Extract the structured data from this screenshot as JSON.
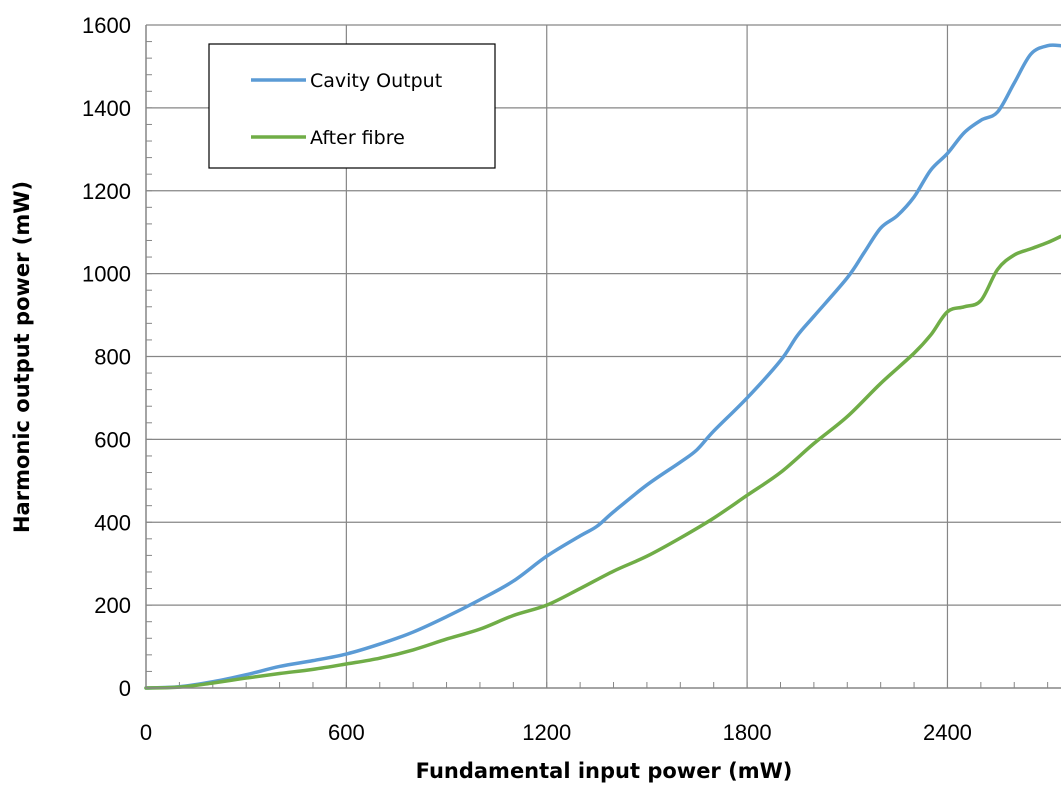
{
  "chart_data": {
    "type": "line",
    "title": "",
    "xlabel": "Fundamental input power (mW)",
    "ylabel": "Harmonic output power (mW)",
    "xlim": [
      0,
      2740
    ],
    "ylim": [
      0,
      1600
    ],
    "x_ticks": [
      0,
      600,
      1200,
      1800,
      2400
    ],
    "y_ticks": [
      0,
      200,
      400,
      600,
      800,
      1000,
      1200,
      1400,
      1600
    ],
    "grid": true,
    "legend_position": "top-left",
    "series": [
      {
        "name": "Cavity Output",
        "color": "#5b9bd5",
        "points": [
          [
            0,
            0
          ],
          [
            100,
            3
          ],
          [
            200,
            15
          ],
          [
            300,
            32
          ],
          [
            400,
            52
          ],
          [
            500,
            66
          ],
          [
            600,
            82
          ],
          [
            700,
            106
          ],
          [
            800,
            135
          ],
          [
            900,
            172
          ],
          [
            1000,
            213
          ],
          [
            1100,
            258
          ],
          [
            1200,
            318
          ],
          [
            1300,
            367
          ],
          [
            1350,
            390
          ],
          [
            1400,
            425
          ],
          [
            1500,
            490
          ],
          [
            1600,
            545
          ],
          [
            1650,
            575
          ],
          [
            1700,
            620
          ],
          [
            1800,
            700
          ],
          [
            1900,
            790
          ],
          [
            1950,
            850
          ],
          [
            2000,
            897
          ],
          [
            2100,
            990
          ],
          [
            2150,
            1050
          ],
          [
            2200,
            1110
          ],
          [
            2250,
            1140
          ],
          [
            2300,
            1185
          ],
          [
            2350,
            1250
          ],
          [
            2400,
            1290
          ],
          [
            2450,
            1340
          ],
          [
            2500,
            1370
          ],
          [
            2550,
            1390
          ],
          [
            2600,
            1460
          ],
          [
            2650,
            1530
          ],
          [
            2700,
            1550
          ],
          [
            2740,
            1550
          ]
        ]
      },
      {
        "name": "After fibre",
        "color": "#70ad47",
        "points": [
          [
            0,
            0
          ],
          [
            100,
            2
          ],
          [
            200,
            12
          ],
          [
            300,
            24
          ],
          [
            400,
            35
          ],
          [
            500,
            45
          ],
          [
            600,
            58
          ],
          [
            700,
            72
          ],
          [
            800,
            92
          ],
          [
            900,
            118
          ],
          [
            1000,
            142
          ],
          [
            1100,
            175
          ],
          [
            1200,
            200
          ],
          [
            1300,
            240
          ],
          [
            1400,
            282
          ],
          [
            1500,
            318
          ],
          [
            1600,
            362
          ],
          [
            1700,
            410
          ],
          [
            1800,
            465
          ],
          [
            1900,
            520
          ],
          [
            2000,
            590
          ],
          [
            2100,
            655
          ],
          [
            2200,
            735
          ],
          [
            2300,
            808
          ],
          [
            2350,
            852
          ],
          [
            2400,
            908
          ],
          [
            2450,
            920
          ],
          [
            2500,
            935
          ],
          [
            2550,
            1010
          ],
          [
            2600,
            1045
          ],
          [
            2650,
            1060
          ],
          [
            2700,
            1075
          ],
          [
            2740,
            1090
          ]
        ]
      }
    ]
  }
}
